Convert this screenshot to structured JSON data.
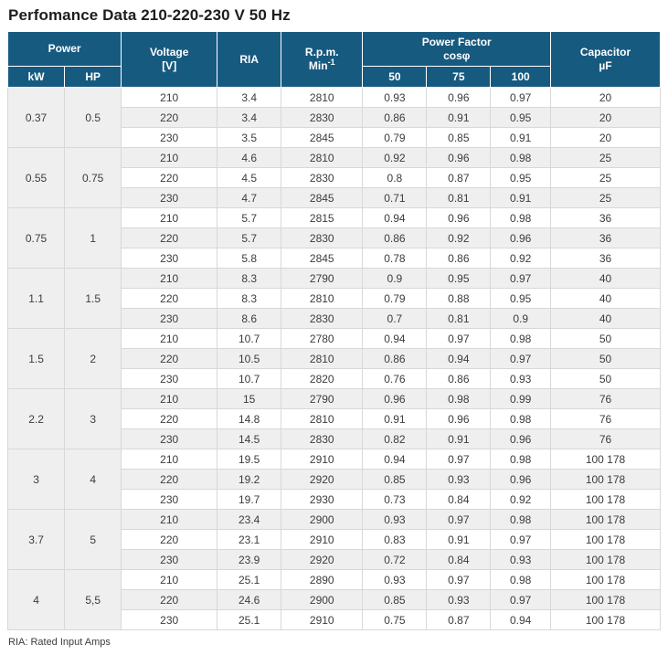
{
  "title": "Perfomance Data 210-220-230 V 50 Hz",
  "footer_note": "RIA: Rated Input Amps",
  "colors": {
    "header_bg": "#175a80",
    "row_alt_bg": "#efefef",
    "body_border": "#d8d8d8",
    "title_color": "#1d1d1b"
  },
  "table": {
    "headers": {
      "power": "Power",
      "kw": "kW",
      "hp": "HP",
      "voltage_line1": "Voltage",
      "voltage_line2": "[V]",
      "ria": "RIA",
      "rpm_line1": "R.p.m.",
      "rpm_line2": "Min",
      "rpm_sup": "-1",
      "pf_line1": "Power Factor",
      "pf_line2": "cosφ",
      "pf_50": "50",
      "pf_75": "75",
      "pf_100": "100",
      "capacitor_line1": "Capacitor",
      "capacitor_line2": "µF"
    },
    "groups": [
      {
        "kw": "0.37",
        "hp": "0.5",
        "rows": [
          [
            "210",
            "3.4",
            "2810",
            "0.93",
            "0.96",
            "0.97",
            "20"
          ],
          [
            "220",
            "3.4",
            "2830",
            "0.86",
            "0.91",
            "0.95",
            "20"
          ],
          [
            "230",
            "3.5",
            "2845",
            "0.79",
            "0.85",
            "0.91",
            "20"
          ]
        ]
      },
      {
        "kw": "0.55",
        "hp": "0.75",
        "rows": [
          [
            "210",
            "4.6",
            "2810",
            "0.92",
            "0.96",
            "0.98",
            "25"
          ],
          [
            "220",
            "4.5",
            "2830",
            "0.8",
            "0.87",
            "0.95",
            "25"
          ],
          [
            "230",
            "4.7",
            "2845",
            "0.71",
            "0.81",
            "0.91",
            "25"
          ]
        ]
      },
      {
        "kw": "0.75",
        "hp": "1",
        "rows": [
          [
            "210",
            "5.7",
            "2815",
            "0.94",
            "0.96",
            "0.98",
            "36"
          ],
          [
            "220",
            "5.7",
            "2830",
            "0.86",
            "0.92",
            "0.96",
            "36"
          ],
          [
            "230",
            "5.8",
            "2845",
            "0.78",
            "0.86",
            "0.92",
            "36"
          ]
        ]
      },
      {
        "kw": "1.1",
        "hp": "1.5",
        "rows": [
          [
            "210",
            "8.3",
            "2790",
            "0.9",
            "0.95",
            "0.97",
            "40"
          ],
          [
            "220",
            "8.3",
            "2810",
            "0.79",
            "0.88",
            "0.95",
            "40"
          ],
          [
            "230",
            "8.6",
            "2830",
            "0.7",
            "0.81",
            "0.9",
            "40"
          ]
        ]
      },
      {
        "kw": "1.5",
        "hp": "2",
        "rows": [
          [
            "210",
            "10.7",
            "2780",
            "0.94",
            "0.97",
            "0.98",
            "50"
          ],
          [
            "220",
            "10.5",
            "2810",
            "0.86",
            "0.94",
            "0.97",
            "50"
          ],
          [
            "230",
            "10.7",
            "2820",
            "0.76",
            "0.86",
            "0.93",
            "50"
          ]
        ]
      },
      {
        "kw": "2.2",
        "hp": "3",
        "rows": [
          [
            "210",
            "15",
            "2790",
            "0.96",
            "0.98",
            "0.99",
            "76"
          ],
          [
            "220",
            "14.8",
            "2810",
            "0.91",
            "0.96",
            "0.98",
            "76"
          ],
          [
            "230",
            "14.5",
            "2830",
            "0.82",
            "0.91",
            "0.96",
            "76"
          ]
        ]
      },
      {
        "kw": "3",
        "hp": "4",
        "rows": [
          [
            "210",
            "19.5",
            "2910",
            "0.94",
            "0.97",
            "0.98",
            "100 178"
          ],
          [
            "220",
            "19.2",
            "2920",
            "0.85",
            "0.93",
            "0.96",
            "100 178"
          ],
          [
            "230",
            "19.7",
            "2930",
            "0.73",
            "0.84",
            "0.92",
            "100 178"
          ]
        ]
      },
      {
        "kw": "3.7",
        "hp": "5",
        "rows": [
          [
            "210",
            "23.4",
            "2900",
            "0.93",
            "0.97",
            "0.98",
            "100 178"
          ],
          [
            "220",
            "23.1",
            "2910",
            "0.83",
            "0.91",
            "0.97",
            "100 178"
          ],
          [
            "230",
            "23.9",
            "2920",
            "0.72",
            "0.84",
            "0.93",
            "100 178"
          ]
        ]
      },
      {
        "kw": "4",
        "hp": "5,5",
        "rows": [
          [
            "210",
            "25.1",
            "2890",
            "0.93",
            "0.97",
            "0.98",
            "100 178"
          ],
          [
            "220",
            "24.6",
            "2900",
            "0.85",
            "0.93",
            "0.97",
            "100 178"
          ],
          [
            "230",
            "25.1",
            "2910",
            "0.75",
            "0.87",
            "0.94",
            "100 178"
          ]
        ]
      }
    ]
  }
}
